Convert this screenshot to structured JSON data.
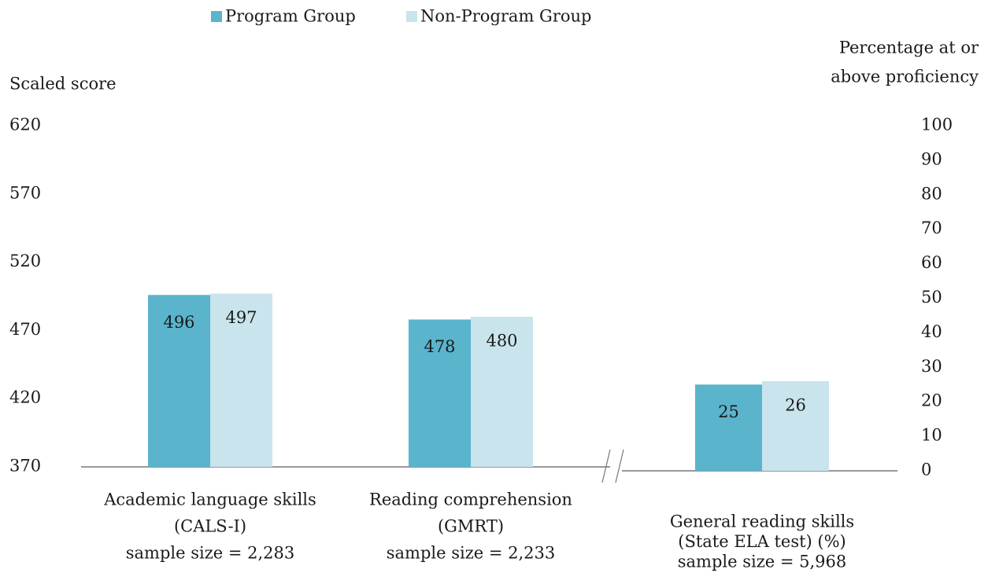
{
  "chart_data": {
    "type": "bar",
    "ylabel": "Scaled score",
    "y2label": [
      "Percentage at or",
      "above proficiency"
    ],
    "categories": [
      [
        "Academic language skills",
        "(CALS-I)",
        "sample size = 2,283"
      ],
      [
        "Reading comprehension",
        "(GMRT)",
        "sample size = 2,233"
      ],
      [
        "General reading skills",
        "(State ELA test) (%)",
        "sample size = 5,968"
      ]
    ],
    "category_axis": [
      "y",
      "y",
      "y2"
    ],
    "series": [
      {
        "name": "Program Group",
        "color": "#5ab4cc",
        "values": [
          496,
          478,
          25
        ]
      },
      {
        "name": "Non-Program Group",
        "color": "#c9e4ec",
        "values": [
          497,
          480,
          26
        ]
      }
    ],
    "ylim": [
      370,
      620
    ],
    "yticks": [
      370,
      420,
      470,
      520,
      570,
      620
    ],
    "y2lim": [
      0,
      100
    ],
    "y2ticks": [
      0,
      10,
      20,
      30,
      40,
      50,
      60,
      70,
      80,
      90,
      100
    ],
    "legend": "top"
  }
}
